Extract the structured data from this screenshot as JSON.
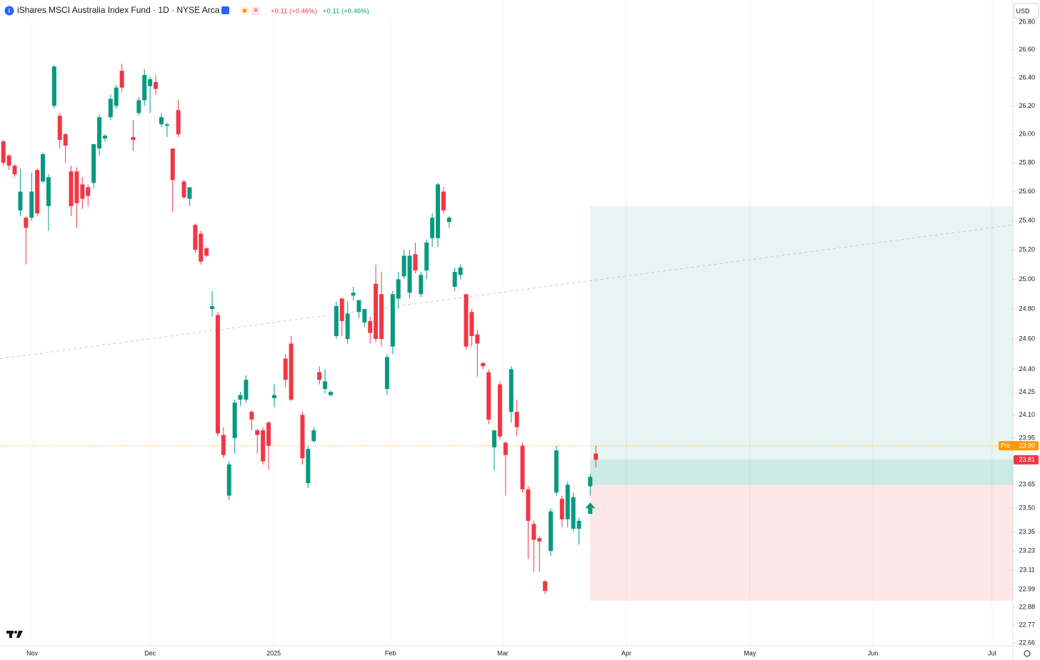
{
  "chart_data": {
    "type": "candlestick",
    "title": "iShares MSCI Australia Index Fund · 1D · NYSE Arca",
    "change_down": "+0.11 (+0.46%)",
    "change_up": "+0.11 (+0.46%)",
    "currency": "USD",
    "log_scale": true,
    "grid": true,
    "up_color": "#089981",
    "down_color": "#f23645",
    "xlim": [
      -0.6,
      178.9
    ],
    "xticks": [
      {
        "value": 5.1,
        "label": "Nov"
      },
      {
        "value": 26,
        "label": "Dec"
      },
      {
        "value": 47.9,
        "label": "2025"
      },
      {
        "value": 68.6,
        "label": "Feb"
      },
      {
        "value": 88.5,
        "label": "Mar"
      },
      {
        "value": 110.4,
        "label": "Apr"
      },
      {
        "value": 132.3,
        "label": "May"
      },
      {
        "value": 154.1,
        "label": "Jun"
      },
      {
        "value": 175.2,
        "label": "Jul"
      }
    ],
    "ylim": [
      22.66,
      26.8
    ],
    "yticks": [
      22.66,
      22.77,
      22.88,
      22.99,
      23.11,
      23.23,
      23.35,
      {
        "value": 23.5,
        "label": "23.50"
      },
      23.65,
      23.95,
      {
        "value": 24.1,
        "label": "24.10"
      },
      24.25,
      {
        "value": 24.4,
        "label": "24.40"
      },
      {
        "value": 24.6,
        "label": "24.60"
      },
      {
        "value": 24.8,
        "label": "24.80"
      },
      {
        "value": 25,
        "label": "25.00"
      },
      {
        "value": 25.2,
        "label": "25.20"
      },
      {
        "value": 25.4,
        "label": "25.40"
      },
      {
        "value": 25.6,
        "label": "25.60"
      },
      {
        "value": 25.8,
        "label": "25.80"
      },
      {
        "value": 26,
        "label": "26.00"
      },
      {
        "value": 26.2,
        "label": "26.20"
      },
      {
        "value": 26.4,
        "label": "26.40"
      },
      {
        "value": 26.6,
        "label": "26.60"
      },
      {
        "value": 26.8,
        "label": "26.80"
      }
    ],
    "x": [
      0,
      1,
      2,
      3,
      4,
      5,
      6,
      7,
      8,
      9,
      10,
      11,
      12,
      13,
      14,
      15,
      16,
      17,
      18,
      19,
      20,
      21,
      23,
      24,
      25,
      26,
      27,
      28,
      29,
      30,
      31,
      32,
      33,
      34,
      35,
      36,
      37,
      38,
      39,
      40,
      41,
      42,
      43,
      44,
      45,
      46,
      47,
      48,
      50,
      51,
      53,
      54,
      55,
      56,
      57,
      58,
      59,
      60,
      61,
      62,
      63,
      64,
      65,
      66,
      67,
      68,
      69,
      70,
      71,
      72,
      73,
      74,
      75,
      76,
      77,
      78,
      79,
      80,
      81,
      82,
      83,
      84,
      85,
      86,
      87,
      88,
      89,
      90,
      91,
      92,
      93,
      94,
      95,
      96,
      97,
      98,
      99,
      100,
      101,
      102,
      104,
      105
    ],
    "open": [
      25.95,
      25.85,
      25.78,
      25.47,
      25.42,
      25.42,
      25.75,
      25.67,
      25.5,
      26.2,
      26.13,
      26.0,
      25.74,
      25.74,
      25.65,
      25.63,
      25.66,
      25.9,
      25.97,
      26.12,
      26.2,
      26.45,
      25.98,
      26.15,
      26.24,
      26.34,
      26.37,
      26.07,
      26.06,
      25.9,
      26.17,
      25.67,
      25.55,
      25.37,
      25.31,
      25.21,
      24.8,
      24.76,
      23.97,
      23.58,
      23.95,
      24.2,
      24.2,
      24.12,
      24.0,
      24.0,
      24.05,
      24.21,
      24.47,
      24.57,
      24.1,
      23.66,
      23.93,
      24.38,
      24.27,
      24.23,
      24.62,
      24.87,
      24.6,
      24.89,
      24.78,
      24.71,
      24.72,
      24.97,
      24.9,
      24.27,
      24.55,
      24.87,
      25.02,
      24.91,
      25.17,
      24.9,
      25.06,
      25.28,
      25.28,
      25.6,
      25.39,
      24.95,
      25.03,
      24.9,
      24.78,
      24.63,
      24.44,
      24.38,
      23.89,
      24.3,
      23.92,
      24.12,
      24.12,
      23.9,
      23.62,
      23.4,
      23.31,
      23.04,
      23.23,
      23.6,
      23.56,
      23.43,
      23.37,
      23.37,
      23.64,
      23.85
    ],
    "high": [
      25.96,
      25.86,
      25.79,
      25.76,
      25.43,
      25.73,
      25.76,
      25.87,
      25.72,
      26.49,
      26.15,
      26.01,
      25.78,
      25.77,
      25.7,
      25.65,
      25.93,
      26.14,
      26.0,
      26.28,
      26.35,
      26.5,
      26.1,
      26.26,
      26.46,
      26.41,
      26.42,
      26.15,
      26.08,
      25.9,
      26.24,
      25.68,
      25.63,
      25.38,
      25.33,
      25.22,
      24.92,
      24.78,
      24.02,
      23.8,
      24.2,
      24.25,
      24.36,
      24.13,
      24.01,
      24.02,
      24.06,
      24.3,
      24.5,
      24.62,
      24.12,
      23.9,
      24.02,
      24.42,
      24.4,
      24.26,
      24.85,
      24.88,
      24.85,
      24.95,
      24.86,
      24.8,
      24.75,
      25.1,
      25.05,
      24.5,
      24.92,
      25.05,
      25.2,
      25.2,
      25.25,
      25.05,
      25.27,
      25.45,
      25.66,
      25.63,
      25.43,
      25.08,
      25.1,
      24.9,
      24.8,
      24.66,
      24.45,
      24.4,
      24.0,
      24.32,
      23.93,
      24.42,
      24.2,
      23.92,
      23.64,
      23.42,
      23.32,
      23.05,
      23.5,
      23.9,
      23.58,
      23.67,
      23.6,
      23.44,
      23.72,
      23.9
    ],
    "low": [
      25.78,
      25.75,
      25.7,
      25.43,
      25.1,
      25.4,
      25.43,
      25.66,
      25.33,
      26.18,
      25.9,
      25.8,
      25.43,
      25.35,
      25.48,
      25.5,
      25.62,
      25.85,
      25.95,
      26.1,
      26.18,
      26.3,
      25.88,
      26.13,
      26.2,
      26.15,
      26.28,
      26.05,
      25.98,
      25.46,
      25.98,
      25.55,
      25.5,
      25.18,
      25.1,
      25.15,
      24.75,
      23.96,
      23.82,
      23.55,
      23.85,
      24.16,
      24.18,
      24.0,
      23.85,
      23.78,
      23.75,
      24.15,
      24.28,
      24.19,
      23.78,
      23.63,
      23.92,
      24.3,
      24.24,
      24.22,
      24.6,
      24.62,
      24.57,
      24.86,
      24.74,
      24.68,
      24.57,
      24.58,
      24.55,
      24.23,
      24.5,
      24.8,
      25.0,
      24.87,
      25.04,
      24.88,
      25.0,
      25.22,
      25.22,
      25.45,
      25.35,
      24.92,
      25.0,
      24.53,
      24.55,
      24.35,
      24.4,
      24.04,
      23.74,
      23.94,
      23.58,
      24.05,
      23.96,
      23.6,
      23.18,
      23.1,
      23.1,
      22.96,
      23.2,
      23.58,
      23.38,
      23.38,
      23.35,
      23.27,
      23.58,
      23.76
    ],
    "close": [
      25.8,
      25.78,
      25.72,
      25.6,
      25.35,
      25.6,
      25.45,
      25.86,
      25.7,
      26.48,
      25.96,
      25.92,
      25.5,
      25.52,
      25.55,
      25.57,
      25.93,
      26.12,
      25.99,
      26.25,
      26.33,
      26.33,
      25.96,
      26.24,
      26.42,
      26.39,
      26.32,
      26.12,
      26.07,
      25.68,
      26.0,
      25.56,
      25.63,
      25.2,
      25.12,
      25.16,
      24.82,
      23.98,
      23.84,
      23.78,
      24.18,
      24.23,
      24.33,
      24.07,
      23.97,
      23.8,
      23.9,
      24.23,
      24.33,
      24.2,
      23.82,
      23.88,
      24.0,
      24.33,
      24.32,
      24.25,
      24.82,
      24.72,
      24.77,
      24.91,
      24.86,
      24.8,
      24.64,
      24.6,
      24.6,
      24.48,
      24.9,
      25.0,
      25.16,
      25.16,
      25.06,
      25.03,
      25.25,
      25.42,
      25.65,
      25.47,
      25.42,
      25.05,
      25.08,
      24.55,
      24.62,
      24.57,
      24.42,
      24.07,
      24.0,
      23.96,
      23.84,
      24.4,
      24.02,
      23.62,
      23.42,
      23.3,
      23.29,
      22.98,
      23.48,
      23.87,
      23.43,
      23.65,
      23.57,
      23.42,
      23.7,
      23.81
    ],
    "position": {
      "x_start": 104,
      "x_end": 178.9,
      "target": 25.5,
      "entry": 23.65,
      "stop": 22.92
    },
    "trend_line": {
      "x": [
        -0.6,
        178.9
      ],
      "values": [
        24.47,
        25.37
      ]
    },
    "signal": {
      "x": 104,
      "value": 23.5
    },
    "pre_label": "Pre",
    "pre_price": {
      "value": 23.9,
      "label": "23.90"
    },
    "last_price": 23.81
  }
}
